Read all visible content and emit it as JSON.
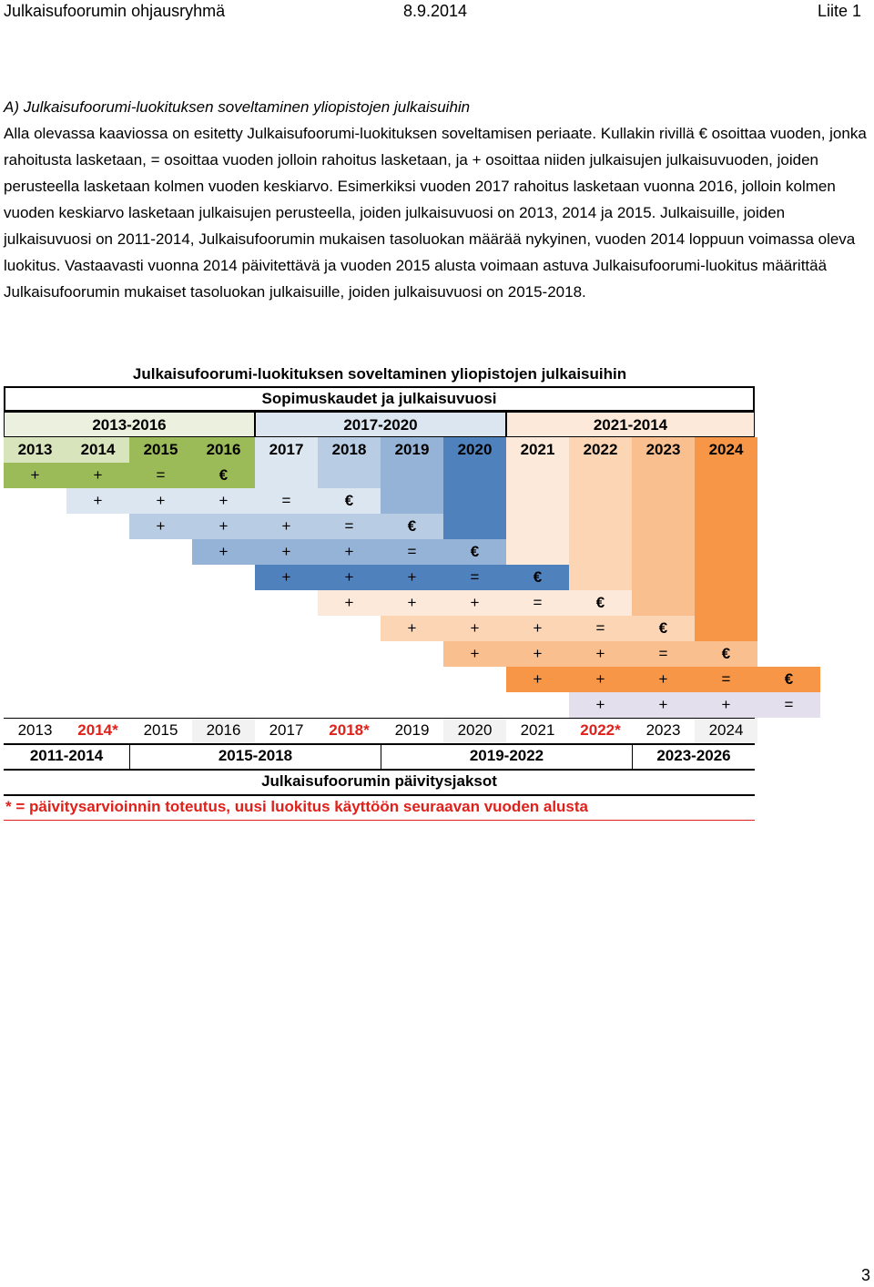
{
  "header": {
    "left": "Julkaisufoorumin ohjausryhmä",
    "center": "8.9.2014",
    "right": "Liite 1"
  },
  "section_title": "A) Julkaisufoorumi-luokituksen soveltaminen yliopistojen julkaisuihin",
  "body_text": "Alla olevassa kaaviossa on esitetty Julkaisufoorumi-luokituksen soveltamisen periaate. Kullakin rivillä € osoittaa vuoden, jonka rahoitusta lasketaan, = osoittaa vuoden jolloin rahoitus lasketaan, ja + osoittaa niiden julkaisujen julkaisuvuoden, joiden perusteella lasketaan kolmen vuoden keskiarvo. Esimerkiksi vuoden 2017 rahoitus lasketaan vuonna 2016, jolloin kolmen vuoden keskiarvo lasketaan julkaisujen perusteella, joiden julkaisuvuosi on 2013, 2014 ja 2015. Julkaisuille, joiden julkaisuvuosi on 2011-2014, Julkaisufoorumin mukaisen tasoluokan määrää nykyinen, vuoden 2014 loppuun voimassa oleva luokitus. Vastaavasti vuonna 2014 päivitettävä ja vuoden 2015 alusta voimaan astuva Julkaisufoorumi-luokitus määrittää Julkaisufoorumin mukaiset tasoluokan julkaisuille, joiden julkaisuvuosi on 2015-2018.",
  "chart": {
    "title": "Julkaisufoorumi-luokituksen soveltaminen yliopistojen julkaisuihin",
    "agreement_header": "Sopimuskaudet ja julkaisuvuosi",
    "periods": [
      "2013-2016",
      "2017-2020",
      "2021-2014"
    ],
    "years": [
      "2013",
      "2014",
      "2015",
      "2016",
      "2017",
      "2018",
      "2019",
      "2020",
      "2021",
      "2022",
      "2023",
      "2024"
    ],
    "rows": [
      [
        "+",
        "+",
        "=",
        "€"
      ],
      [
        "+",
        "+",
        "+",
        "=",
        "€"
      ],
      [
        "+",
        "+",
        "+",
        "=",
        "€"
      ],
      [
        "+",
        "+",
        "+",
        "=",
        "€"
      ],
      [
        "+",
        "+",
        "+",
        "=",
        "€"
      ],
      [
        "+",
        "+",
        "+",
        "=",
        "€"
      ],
      [
        "+",
        "+",
        "+",
        "=",
        "€"
      ],
      [
        "+",
        "+",
        "+",
        "=",
        "€"
      ],
      [
        "+",
        "+",
        "+",
        "=",
        "€"
      ],
      [
        "+",
        "+",
        "+",
        "="
      ]
    ],
    "update_years": [
      "2013",
      "2014*",
      "2015",
      "2016",
      "2017",
      "2018*",
      "2019",
      "2020",
      "2021",
      "2022*",
      "2023",
      "2024"
    ],
    "update_periods": [
      "2011-2014",
      "2015-2018",
      "2019-2022",
      "2023-2026"
    ],
    "update_title": "Julkaisufoorumin päivitysjaksot",
    "footnote": "* = päivitysarvioinnin toteutus, uusi luokitus käyttöön seuraavan vuoden alusta",
    "colors": {
      "green_light": "#ebf1de",
      "green_mid": "#d8e4bc",
      "green_dark": "#9bbb59",
      "blue_light": "#dce6f1",
      "blue_mid": "#b8cce4",
      "blue_mid2": "#95b3d7",
      "blue_dark": "#4f81bd",
      "orange_light": "#fde9d9",
      "orange_mid": "#fcd5b4",
      "orange_mid2": "#fabf8f",
      "orange_dark": "#f79646",
      "lavender": "#e4dfec",
      "grey": "#f2f2f2",
      "red_text": "#e0211b"
    }
  }
}
